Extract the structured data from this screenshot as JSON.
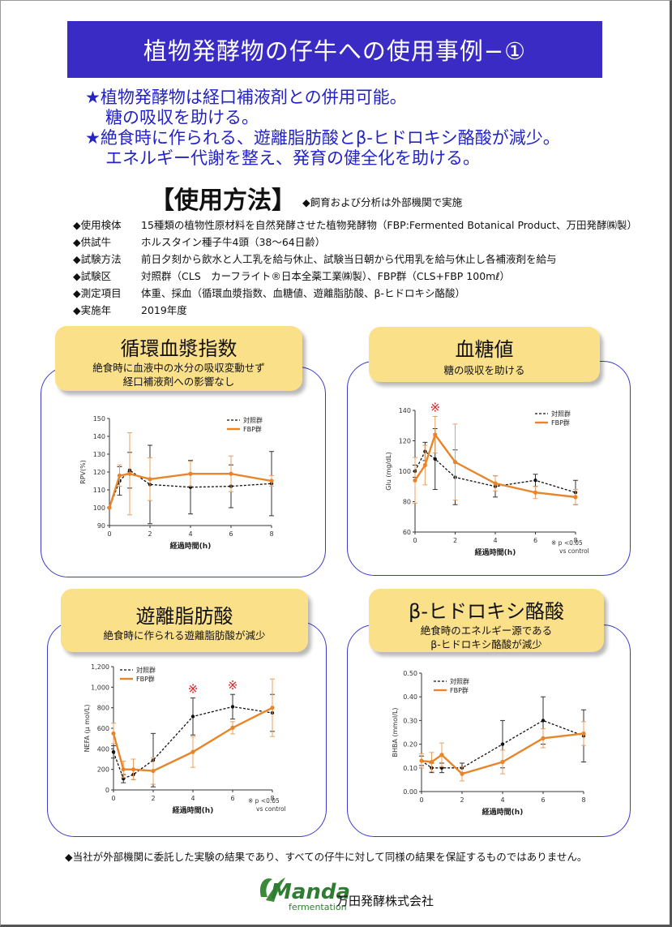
{
  "title": "植物発酵物の仔牛への使用事例−①",
  "highlights": [
    "★植物発酵物は経口補液剤との併用可能。",
    "糖の吸収を助ける。",
    "★絶食時に作られる、遊離脂肪酸とβ-ヒドロキシ酪酸が減少。",
    "エネルギー代謝を整え、発育の健全化を助ける。"
  ],
  "method": {
    "heading": "【使用方法】",
    "note": "◆飼育および分析は外部機関で実施",
    "rows": [
      {
        "label": "◆使用検体",
        "value": "15種類の植物性原材料を自然発酵させた植物発酵物（FBP:Fermented Botanical Product、万田発酵㈱製）"
      },
      {
        "label": "◆供試牛",
        "value": "ホルスタイン種子牛4頭（38～64日齢）"
      },
      {
        "label": "◆試験方法",
        "value": "前日夕刻から飲水と人工乳を給与休止、試験当日朝から代用乳を給与休止し各補液剤を給与"
      },
      {
        "label": "◆試験区",
        "value": "対照群（CLS　カーフライト®日本全薬工業㈱製）、FBP群（CLS+FBP 100mℓ）"
      },
      {
        "label": "◆測定項目",
        "value": "体重、採血（循環血漿指数、血糖値、遊離脂肪酸、β-ヒドロキシ酪酸）"
      },
      {
        "label": "◆実施年",
        "value": "2019年度"
      }
    ]
  },
  "panels": [
    {
      "title": "循環血漿指数",
      "subtitle": [
        "絶食時に血液中の水分の吸収変動せず",
        "経口補液剤への影響なし"
      ]
    },
    {
      "title": "血糖値",
      "subtitle": [
        "糖の吸収を助ける"
      ]
    },
    {
      "title": "遊離脂肪酸",
      "subtitle": [
        "絶食時に作られる遊離脂肪酸が減少"
      ]
    },
    {
      "title": "β-ヒドロキシ酪酸",
      "subtitle": [
        "絶食時のエネルギー源である",
        "β-ヒドロキシ酪酸が減少"
      ]
    }
  ],
  "colors": {
    "control": "#111111",
    "fbp": "#e8852a",
    "banner": "#3a2bc4",
    "highlight": "#2323c8",
    "tag": "#fbe08a",
    "frame": "#3a3ac9",
    "sig": "#e02020"
  },
  "chart_data": [
    {
      "type": "line",
      "xlabel": "経過時間(h)",
      "ylabel": "RPV(%)",
      "ylim": [
        90,
        150
      ],
      "yticks": [
        "90",
        "100",
        "110",
        "120",
        "130",
        "140",
        "150"
      ],
      "xlim": [
        0,
        8
      ],
      "xticks": [
        "0",
        "2",
        "4",
        "6",
        "8"
      ],
      "x": [
        0,
        0.5,
        1,
        2,
        4,
        6,
        8
      ],
      "series": [
        {
          "name": "対照群",
          "values": [
            100,
            115,
            121,
            113,
            111.5,
            112,
            113.5
          ],
          "err": [
            0,
            8,
            10,
            22,
            15,
            12,
            18
          ]
        },
        {
          "name": "FBP群",
          "values": [
            100,
            118,
            119,
            116,
            119,
            119,
            115
          ],
          "err": [
            0,
            6,
            23,
            12,
            7,
            10,
            3
          ]
        }
      ],
      "sig_x": [],
      "note": []
    },
    {
      "type": "line",
      "xlabel": "経過時間(h)",
      "ylabel": "Glu (mg/dL)",
      "ylim": [
        60,
        140
      ],
      "yticks": [
        "60",
        "80",
        "100",
        "120",
        "140"
      ],
      "xlim": [
        0,
        8
      ],
      "xticks": [
        "0",
        "2",
        "4",
        "6",
        "8"
      ],
      "x": [
        0,
        0.5,
        1,
        2,
        4,
        6,
        8
      ],
      "series": [
        {
          "name": "対照群",
          "values": [
            100,
            113,
            108,
            96,
            90,
            94,
            86
          ],
          "err": [
            4,
            6,
            20,
            18,
            7,
            4,
            8
          ]
        },
        {
          "name": "FBP群",
          "values": [
            94,
            104,
            124,
            106,
            92,
            86,
            83
          ],
          "err": [
            15,
            13,
            12,
            25,
            5,
            4,
            5
          ]
        }
      ],
      "sig_x": [
        1
      ],
      "note": [
        "※ p <0.05",
        "vs control"
      ]
    },
    {
      "type": "line",
      "xlabel": "経過時間(h)",
      "ylabel": "NEFA (μ mol/L)",
      "ylim": [
        0,
        1200
      ],
      "yticks": [
        "0",
        "200",
        "400",
        "600",
        "800",
        "1,000",
        "1,200"
      ],
      "xlim": [
        0,
        8
      ],
      "xticks": [
        "0",
        "2",
        "4",
        "6",
        "8"
      ],
      "x": [
        0,
        0.5,
        1,
        2,
        4,
        6,
        8
      ],
      "series": [
        {
          "name": "対照群",
          "values": [
            370,
            110,
            150,
            290,
            715,
            810,
            750
          ],
          "err": [
            60,
            40,
            50,
            260,
            180,
            120,
            180
          ]
        },
        {
          "name": "FBP群",
          "values": [
            550,
            200,
            200,
            185,
            370,
            605,
            800
          ],
          "err": [
            100,
            80,
            100,
            130,
            150,
            60,
            280
          ]
        }
      ],
      "sig_x": [
        4,
        6
      ],
      "note": [
        "※ p <0.05",
        "vs control"
      ]
    },
    {
      "type": "line",
      "xlabel": "経過時間(h)",
      "ylabel": "BHBA (mmol/L)",
      "ylim": [
        0,
        0.5
      ],
      "yticks": [
        "0.00",
        "0.10",
        "0.20",
        "0.30",
        "0.40",
        "0.50"
      ],
      "xlim": [
        0,
        8
      ],
      "xticks": [
        "0",
        "2",
        "4",
        "6",
        "8"
      ],
      "x": [
        0,
        0.5,
        1,
        2,
        4,
        6,
        8
      ],
      "series": [
        {
          "name": "対照群",
          "values": [
            0.13,
            0.1,
            0.1,
            0.1,
            0.2,
            0.3,
            0.235
          ],
          "err": [
            0.02,
            0.02,
            0.02,
            0.02,
            0.1,
            0.1,
            0.11
          ]
        },
        {
          "name": "FBP群",
          "values": [
            0.13,
            0.125,
            0.155,
            0.075,
            0.125,
            0.225,
            0.245
          ],
          "err": [
            0.03,
            0.04,
            0.05,
            0.03,
            0.05,
            0.04,
            0.05
          ]
        }
      ],
      "sig_x": [],
      "note": []
    }
  ],
  "footnote": "◆当社が外部機関に委託した実験の結果であり、すべての仔牛に対して同様の結果を保証するものではありません。",
  "logo": {
    "text": "Manda",
    "sub": "fermentation"
  },
  "company": "万田発酵株式会社"
}
